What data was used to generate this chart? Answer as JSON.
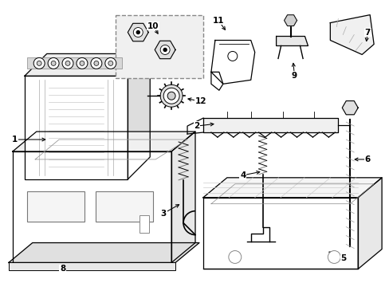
{
  "background_color": "#ffffff",
  "line_color": "#000000",
  "figsize": [
    4.89,
    3.6
  ],
  "dpi": 100,
  "label_fontsize": 7.5
}
